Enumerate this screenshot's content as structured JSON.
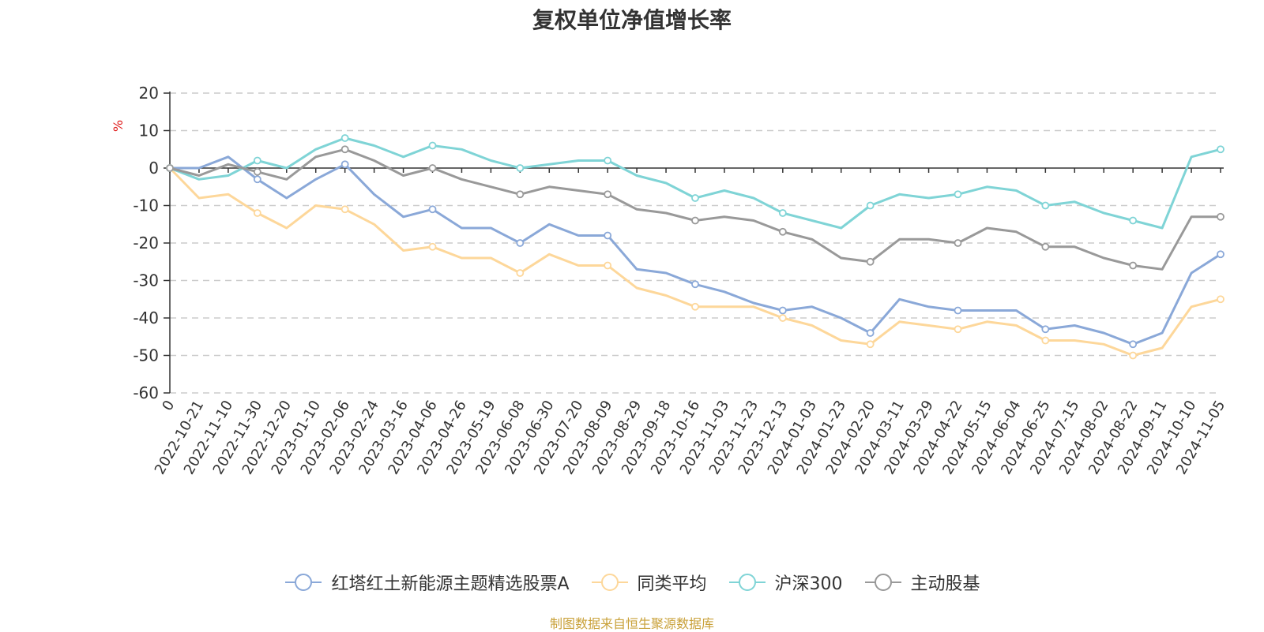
{
  "chart_data": {
    "type": "line",
    "title": "复权单位净值增长率",
    "ylabel": "%",
    "ylim": [
      -60,
      20
    ],
    "yticks": [
      20,
      10,
      0,
      -10,
      -20,
      -30,
      -40,
      -50,
      -60
    ],
    "grid": true,
    "legend_position": "bottom",
    "categories": [
      "0",
      "2022-10-21",
      "2022-11-10",
      "2022-11-30",
      "2022-12-20",
      "2023-01-10",
      "2023-02-06",
      "2023-02-24",
      "2023-03-16",
      "2023-04-06",
      "2023-04-26",
      "2023-05-19",
      "2023-06-08",
      "2023-06-30",
      "2023-07-20",
      "2023-08-09",
      "2023-08-29",
      "2023-09-18",
      "2023-10-16",
      "2023-11-03",
      "2023-11-23",
      "2023-12-13",
      "2024-01-03",
      "2024-01-23",
      "2024-02-20",
      "2024-03-11",
      "2024-03-29",
      "2024-04-22",
      "2024-05-15",
      "2024-06-04",
      "2024-06-25",
      "2024-07-15",
      "2024-08-02",
      "2024-08-22",
      "2024-09-11",
      "2024-10-10",
      "2024-11-05"
    ],
    "series": [
      {
        "name": "红塔红土新能源主题精选股票A",
        "color": "#8aa8d8",
        "values": [
          0,
          0,
          3,
          -3,
          -8,
          -3,
          1,
          -7,
          -13,
          -11,
          -16,
          -16,
          -20,
          -15,
          -18,
          -18,
          -27,
          -28,
          -31,
          -33,
          -36,
          -38,
          -37,
          -40,
          -44,
          -35,
          -37,
          -38,
          -38,
          -38,
          -43,
          -42,
          -44,
          -47,
          -44,
          -28,
          -23
        ]
      },
      {
        "name": "同类平均",
        "color": "#fdd79a",
        "values": [
          0,
          -8,
          -7,
          -12,
          -16,
          -10,
          -11,
          -15,
          -22,
          -21,
          -24,
          -24,
          -28,
          -23,
          -26,
          -26,
          -32,
          -34,
          -37,
          -37,
          -37,
          -40,
          -42,
          -46,
          -47,
          -41,
          -42,
          -43,
          -41,
          -42,
          -46,
          -46,
          -47,
          -50,
          -48,
          -37,
          -35
        ]
      },
      {
        "name": "沪深300",
        "color": "#7fd4d6",
        "values": [
          0,
          -3,
          -2,
          2,
          0,
          5,
          8,
          6,
          3,
          6,
          5,
          2,
          0,
          1,
          2,
          2,
          -2,
          -4,
          -8,
          -6,
          -8,
          -12,
          -14,
          -16,
          -10,
          -7,
          -8,
          -7,
          -5,
          -6,
          -10,
          -9,
          -12,
          -14,
          -16,
          3,
          5
        ]
      },
      {
        "name": "主动股基",
        "color": "#999999",
        "values": [
          0,
          -2,
          1,
          -1,
          -3,
          3,
          5,
          2,
          -2,
          0,
          -3,
          -5,
          -7,
          -5,
          -6,
          -7,
          -11,
          -12,
          -14,
          -13,
          -14,
          -17,
          -19,
          -24,
          -25,
          -19,
          -19,
          -20,
          -16,
          -17,
          -21,
          -21,
          -24,
          -26,
          -27,
          -13,
          -13
        ]
      }
    ]
  },
  "footer": {
    "source": "制图数据来自恒生聚源数据库"
  }
}
